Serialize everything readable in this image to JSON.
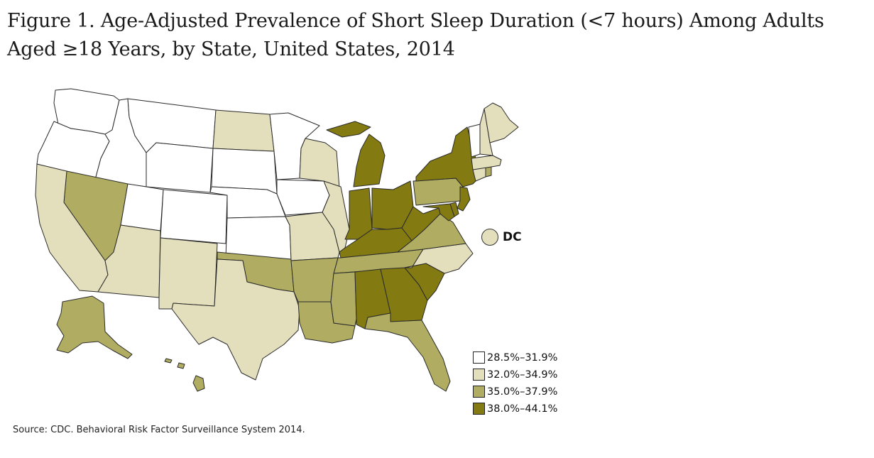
{
  "title": {
    "line1": "Figure 1. Age-Adjusted Prevalence of Short Sleep Duration (<7 hours) Among Adults",
    "line2": "Aged ≥18 Years, by State, United States, 2014"
  },
  "colors": {
    "c1": "#ffffff",
    "c2": "#e3dfbd",
    "c3": "#b0ad62",
    "c4": "#837a11",
    "border": "#2a2a2a"
  },
  "legend": [
    {
      "label": "28.5%–31.9%",
      "class": "c1"
    },
    {
      "label": "32.0%–34.9%",
      "class": "c2"
    },
    {
      "label": "35.0%–37.9%",
      "class": "c3"
    },
    {
      "label": "38.0%–44.1%",
      "class": "c4"
    }
  ],
  "dc": {
    "label": "DC",
    "class": "c2"
  },
  "source": "Source: CDC. Behavioral Risk Factor Surveillance System 2014.",
  "states": {
    "WA": "c1",
    "OR": "c1",
    "ID": "c1",
    "MT": "c1",
    "WY": "c1",
    "UT": "c1",
    "CO": "c1",
    "SD": "c1",
    "NE": "c1",
    "KS": "c1",
    "MN": "c1",
    "IA": "c1",
    "VT": "c1",
    "CA": "c2",
    "AZ": "c2",
    "NM": "c2",
    "TX": "c2",
    "ND": "c2",
    "MO": "c2",
    "WI": "c2",
    "IL": "c2",
    "NC": "c2",
    "ME": "c2",
    "NH": "c2",
    "MA": "c2",
    "CT": "c2",
    "NV": "c3",
    "OK": "c3",
    "AR": "c3",
    "LA": "c3",
    "MS": "c3",
    "TN": "c3",
    "VA": "c3",
    "PA": "c3",
    "FL": "c3",
    "AK": "c3",
    "HI": "c3",
    "RI": "c3",
    "NJ": "c4",
    "MI": "c4",
    "IN": "c4",
    "OH": "c4",
    "KY": "c4",
    "WV": "c4",
    "AL": "c4",
    "GA": "c4",
    "SC": "c4",
    "NY": "c4",
    "MD": "c4",
    "DE": "c4"
  }
}
